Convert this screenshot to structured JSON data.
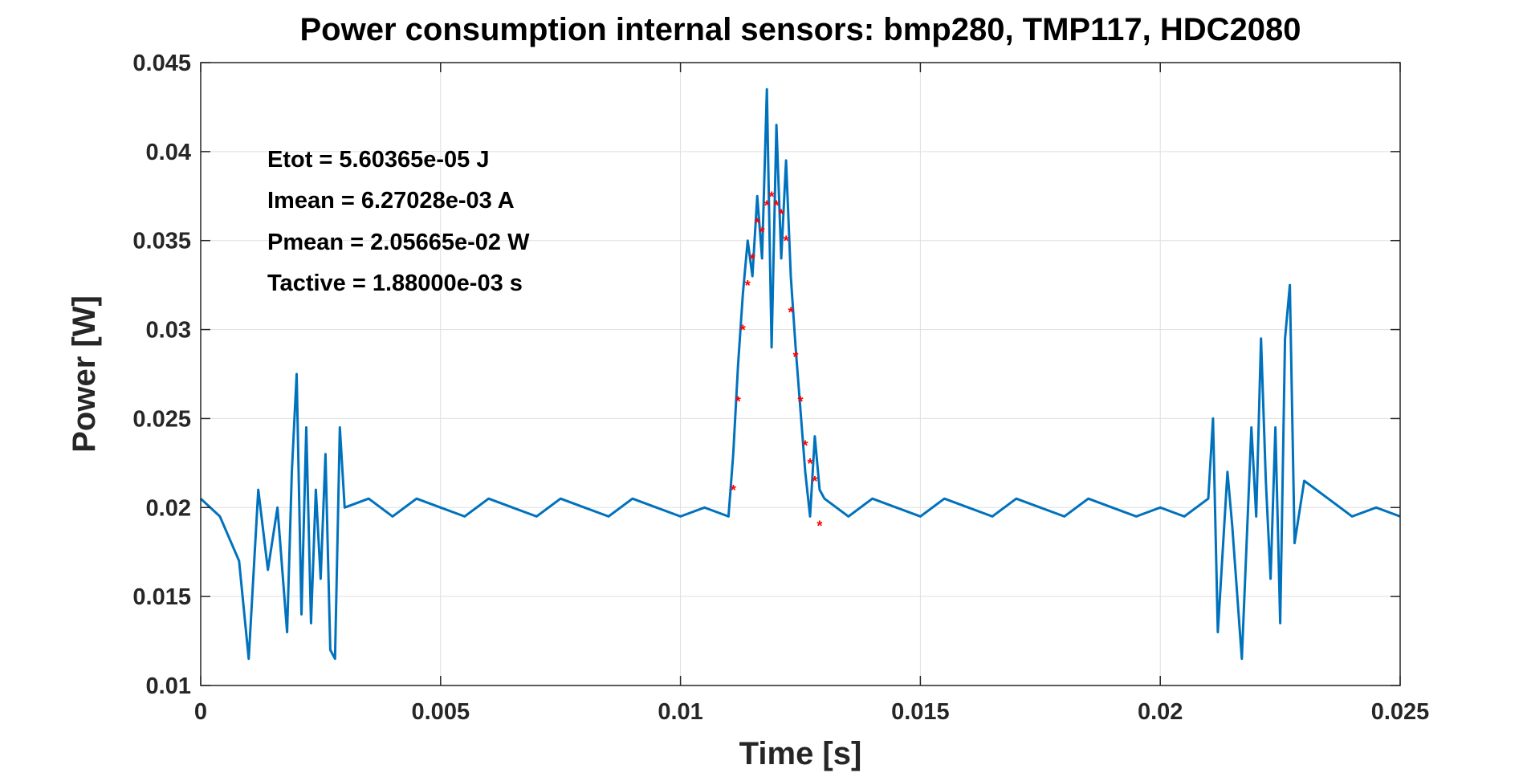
{
  "chart_data": {
    "type": "line",
    "title": "Power consumption internal sensors: bmp280, TMP117, HDC2080",
    "xlabel": "Time [s]",
    "ylabel": "Power [W]",
    "xlim": [
      0,
      0.025
    ],
    "ylim": [
      0.01,
      0.045
    ],
    "x_ticks": [
      "0",
      "0.005",
      "0.01",
      "0.015",
      "0.02",
      "0.025"
    ],
    "y_ticks": [
      "0.01",
      "0.015",
      "0.02",
      "0.025",
      "0.03",
      "0.035",
      "0.04",
      "0.045"
    ],
    "grid": true,
    "annotations": [
      "Etot = 5.60365e-05 J",
      "Imean = 6.27028e-03 A",
      "Pmean = 2.05665e-02 W",
      "Tactive = 1.88000e-03 s"
    ],
    "series": [
      {
        "style": "line",
        "color": "#0072BD",
        "x": [
          0,
          0.0004,
          0.0008,
          0.001,
          0.0012,
          0.0014,
          0.0016,
          0.0018,
          0.0019,
          0.002,
          0.0021,
          0.0022,
          0.0023,
          0.0024,
          0.0025,
          0.0026,
          0.0027,
          0.0028,
          0.0029,
          0.003,
          0.0035,
          0.004,
          0.0045,
          0.005,
          0.0055,
          0.006,
          0.0065,
          0.007,
          0.0075,
          0.008,
          0.0085,
          0.009,
          0.0095,
          0.01,
          0.0105,
          0.011,
          0.0111,
          0.0112,
          0.0113,
          0.0114,
          0.0115,
          0.0116,
          0.0117,
          0.0118,
          0.0119,
          0.012,
          0.0121,
          0.0122,
          0.0123,
          0.0124,
          0.0125,
          0.0126,
          0.0127,
          0.0128,
          0.0129,
          0.013,
          0.0135,
          0.014,
          0.0145,
          0.015,
          0.0155,
          0.016,
          0.0165,
          0.017,
          0.0175,
          0.018,
          0.0185,
          0.019,
          0.0195,
          0.02,
          0.0205,
          0.021,
          0.0211,
          0.0212,
          0.0214,
          0.0215,
          0.0217,
          0.0219,
          0.022,
          0.0221,
          0.0222,
          0.0223,
          0.0224,
          0.0225,
          0.0226,
          0.0227,
          0.0228,
          0.023,
          0.0235,
          0.024,
          0.0245,
          0.025
        ],
        "y": [
          0.0205,
          0.0195,
          0.017,
          0.0115,
          0.021,
          0.0165,
          0.02,
          0.013,
          0.022,
          0.0275,
          0.014,
          0.0245,
          0.0135,
          0.021,
          0.016,
          0.023,
          0.012,
          0.0115,
          0.0245,
          0.02,
          0.0205,
          0.0195,
          0.0205,
          0.02,
          0.0195,
          0.0205,
          0.02,
          0.0195,
          0.0205,
          0.02,
          0.0195,
          0.0205,
          0.02,
          0.0195,
          0.02,
          0.0195,
          0.023,
          0.028,
          0.032,
          0.035,
          0.033,
          0.0375,
          0.034,
          0.0435,
          0.029,
          0.0415,
          0.034,
          0.0395,
          0.033,
          0.029,
          0.0255,
          0.022,
          0.0195,
          0.024,
          0.021,
          0.0205,
          0.0195,
          0.0205,
          0.02,
          0.0195,
          0.0205,
          0.02,
          0.0195,
          0.0205,
          0.02,
          0.0195,
          0.0205,
          0.02,
          0.0195,
          0.02,
          0.0195,
          0.0205,
          0.025,
          0.013,
          0.022,
          0.019,
          0.0115,
          0.0245,
          0.0195,
          0.0295,
          0.0215,
          0.016,
          0.0245,
          0.0135,
          0.0295,
          0.0325,
          0.018,
          0.0215,
          0.0205,
          0.0195,
          0.02,
          0.0195
        ]
      },
      {
        "style": "markers",
        "marker": "*",
        "color": "#FF0000",
        "x": [
          0.0111,
          0.0112,
          0.0113,
          0.0114,
          0.0115,
          0.0116,
          0.0117,
          0.0118,
          0.0119,
          0.012,
          0.0121,
          0.0122,
          0.0123,
          0.0124,
          0.0125,
          0.0126,
          0.0127,
          0.0128,
          0.0129
        ],
        "y": [
          0.021,
          0.026,
          0.03,
          0.0325,
          0.034,
          0.036,
          0.0355,
          0.037,
          0.0375,
          0.037,
          0.0365,
          0.035,
          0.031,
          0.0285,
          0.026,
          0.0235,
          0.0225,
          0.0215,
          0.019
        ]
      }
    ]
  }
}
